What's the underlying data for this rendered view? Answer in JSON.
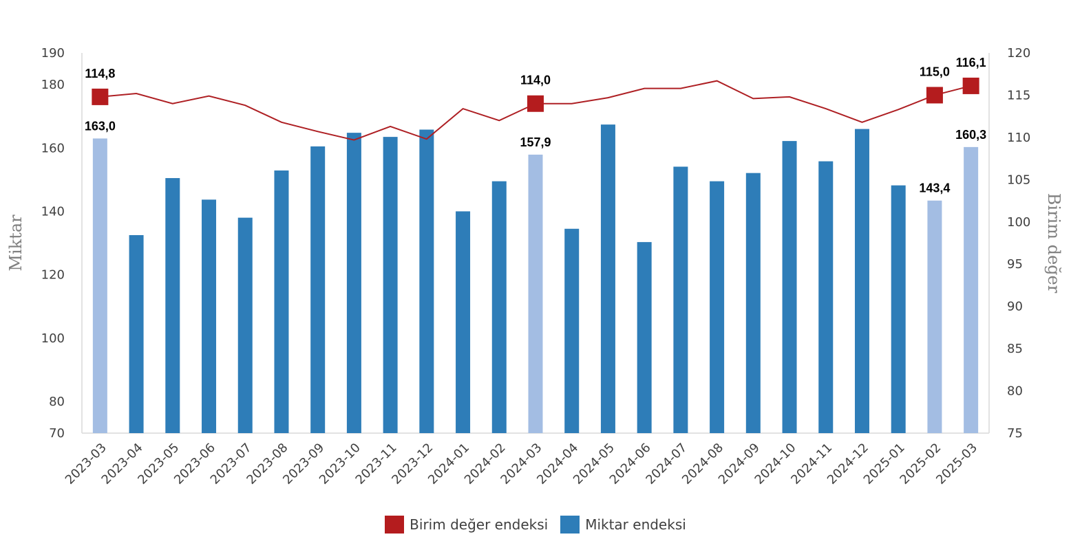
{
  "chart_data": {
    "type": "bar",
    "categories": [
      "2023-03",
      "2023-04",
      "2023-05",
      "2023-06",
      "2023-07",
      "2023-08",
      "2023-09",
      "2023-10",
      "2023-11",
      "2023-12",
      "2024-01",
      "2024-02",
      "2024-03",
      "2024-04",
      "2024-05",
      "2024-06",
      "2024-07",
      "2024-08",
      "2024-09",
      "2024-10",
      "2024-11",
      "2024-12",
      "2025-01",
      "2025-02",
      "2025-03"
    ],
    "series": [
      {
        "name": "Miktar endeksi",
        "type": "bar",
        "axis": "left",
        "color": "#2E7DB8",
        "highlight_color": "#A3BDE3",
        "highlighted": [
          "2023-03",
          "2024-03",
          "2025-02",
          "2025-03"
        ],
        "values": [
          163.0,
          132.5,
          150.5,
          143.7,
          138.0,
          152.9,
          160.5,
          164.8,
          163.5,
          165.8,
          140.0,
          149.5,
          157.9,
          134.5,
          167.4,
          130.3,
          154.1,
          149.5,
          152.1,
          162.2,
          155.8,
          166.0,
          148.2,
          143.4,
          160.3
        ]
      },
      {
        "name": "Birim değer endeksi",
        "type": "line",
        "axis": "right",
        "color": "#AE1F23",
        "marker_color": "#B41C1E",
        "markers": [
          "2023-03",
          "2024-03",
          "2025-02",
          "2025-03"
        ],
        "values": [
          114.8,
          115.2,
          114.0,
          114.9,
          113.8,
          111.8,
          110.7,
          109.7,
          111.3,
          109.8,
          113.4,
          112.0,
          114.0,
          114.0,
          114.7,
          115.8,
          115.8,
          116.7,
          114.6,
          114.8,
          113.4,
          111.8,
          113.3,
          115.0,
          116.1
        ]
      }
    ],
    "data_labels": [
      {
        "category": "2023-03",
        "series": "Miktar endeksi",
        "text": "163,0"
      },
      {
        "category": "2024-03",
        "series": "Miktar endeksi",
        "text": "157,9"
      },
      {
        "category": "2025-02",
        "series": "Miktar endeksi",
        "text": "143,4"
      },
      {
        "category": "2025-03",
        "series": "Miktar endeksi",
        "text": "160,3"
      },
      {
        "category": "2023-03",
        "series": "Birim değer endeksi",
        "text": "114,8"
      },
      {
        "category": "2024-03",
        "series": "Birim değer endeksi",
        "text": "114,0"
      },
      {
        "category": "2025-02",
        "series": "Birim değer endeksi",
        "text": "115,0"
      },
      {
        "category": "2025-03",
        "series": "Birim değer endeksi",
        "text": "116,1"
      }
    ],
    "y_left": {
      "label": "Miktar",
      "ticks": [
        70,
        80,
        100,
        120,
        140,
        160,
        180,
        190
      ],
      "ylim": [
        70,
        190
      ]
    },
    "y_right": {
      "label": "Birim değer",
      "ticks": [
        75,
        80,
        85,
        90,
        95,
        100,
        105,
        110,
        115,
        120
      ],
      "ylim": [
        75,
        120
      ]
    },
    "xlabel": "",
    "grid": false,
    "legend_position": "bottom"
  },
  "legend": {
    "unit_value": {
      "label": "Birim değer endeksi",
      "color": "#B41C1E"
    },
    "quantity": {
      "label": "Miktar endeksi",
      "color": "#2E7DB8"
    }
  }
}
